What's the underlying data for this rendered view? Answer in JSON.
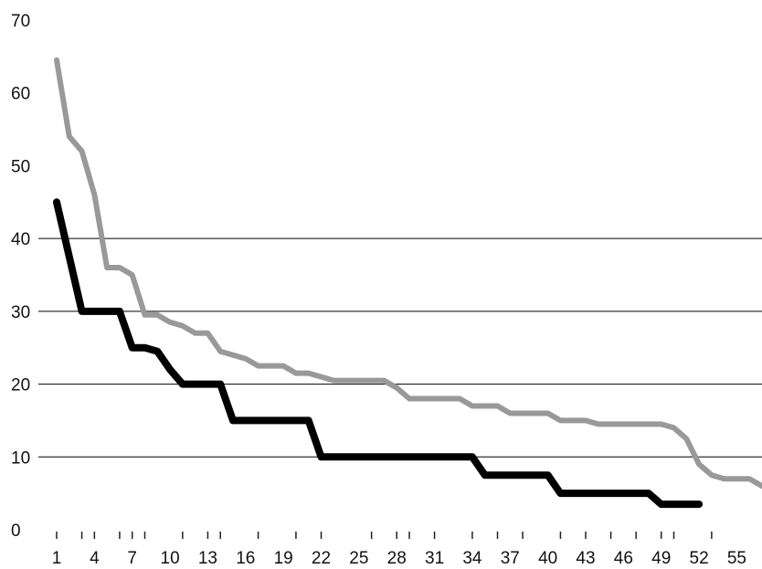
{
  "chart_data": {
    "type": "line",
    "title": "",
    "xlabel": "",
    "ylabel": "",
    "ylim": [
      0,
      70
    ],
    "yticks": [
      0,
      10,
      20,
      30,
      40,
      50,
      60,
      70
    ],
    "xlim": [
      1,
      57
    ],
    "xtick_labels": [
      "1",
      "4",
      "7",
      "10",
      "13",
      "16",
      "19",
      "22",
      "25",
      "28",
      "31",
      "34",
      "37",
      "40",
      "43",
      "46",
      "49",
      "52",
      "55"
    ],
    "xtick_label_positions": [
      1,
      4,
      7,
      10,
      13,
      16,
      19,
      22,
      25,
      28,
      31,
      34,
      37,
      40,
      43,
      46,
      49,
      52,
      55
    ],
    "minor_tick_positions": [
      1,
      3,
      4,
      6,
      7,
      8,
      11,
      13,
      14,
      17,
      20,
      22,
      26,
      28,
      29,
      31,
      34,
      36,
      38,
      41,
      43,
      45,
      47,
      49,
      50,
      53
    ],
    "gridlines": [
      10,
      20,
      30,
      40
    ],
    "grid": true,
    "legend": "none",
    "series": [
      {
        "color": "#999999",
        "x": [
          1,
          2,
          3,
          4,
          5,
          6,
          7,
          8,
          9,
          10,
          11,
          12,
          13,
          14,
          15,
          16,
          17,
          18,
          19,
          20,
          21,
          22,
          23,
          24,
          25,
          26,
          27,
          28,
          29,
          30,
          31,
          32,
          33,
          34,
          35,
          36,
          37,
          38,
          39,
          40,
          41,
          42,
          43,
          44,
          45,
          46,
          47,
          48,
          49,
          50,
          51,
          52,
          53,
          54,
          55,
          56,
          57
        ],
        "values": [
          64.5,
          54,
          52,
          46,
          36,
          36,
          35,
          29.5,
          29.5,
          28.5,
          28,
          27,
          27,
          24.5,
          24,
          23.5,
          22.5,
          22.5,
          22.5,
          21.5,
          21.5,
          21,
          20.5,
          20.5,
          20.5,
          20.5,
          20.5,
          19.5,
          18,
          18,
          18,
          18,
          18,
          17,
          17,
          17,
          16,
          16,
          16,
          16,
          15,
          15,
          15,
          14.5,
          14.5,
          14.5,
          14.5,
          14.5,
          14.5,
          14,
          12.5,
          9,
          7.5,
          7,
          7,
          7,
          6
        ]
      },
      {
        "color": "#000000",
        "x": [
          1,
          2,
          3,
          4,
          5,
          6,
          7,
          8,
          9,
          10,
          11,
          12,
          13,
          14,
          15,
          16,
          17,
          18,
          19,
          20,
          21,
          22,
          23,
          24,
          25,
          26,
          27,
          28,
          29,
          30,
          31,
          32,
          33,
          34,
          35,
          36,
          37,
          38,
          39,
          40,
          41,
          42,
          43,
          44,
          45,
          46,
          47,
          48,
          49,
          50,
          51,
          52
        ],
        "values": [
          45,
          37.5,
          30,
          30,
          30,
          30,
          25,
          25,
          24.5,
          22,
          20,
          20,
          20,
          20,
          15,
          15,
          15,
          15,
          15,
          15,
          15,
          10,
          10,
          10,
          10,
          10,
          10,
          10,
          10,
          10,
          10,
          10,
          10,
          10,
          7.5,
          7.5,
          7.5,
          7.5,
          7.5,
          7.5,
          5,
          5,
          5,
          5,
          5,
          5,
          5,
          5,
          3.5,
          3.5,
          3.5,
          3.5
        ]
      }
    ]
  }
}
